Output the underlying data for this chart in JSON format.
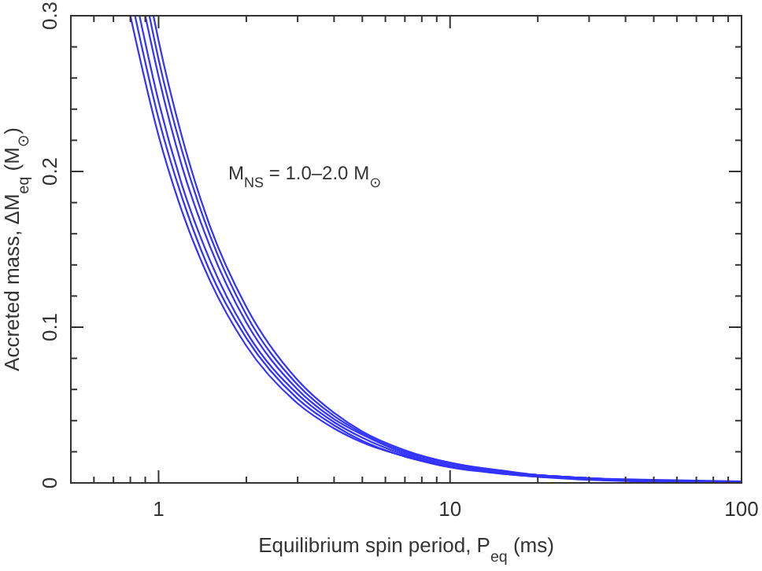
{
  "chart_data": {
    "type": "line",
    "xlabel": "Equilibrium spin period, P$_{eq}$ (ms)",
    "ylabel": "Accreted mass, ΔM$_{eq}$ (M$_{⊙}$)",
    "annotations": [
      "M$_{NS}$ = 1.0–2.0 M$_{⊙}$"
    ],
    "log": "x",
    "xlim": [
      0.5,
      100
    ],
    "ylim": [
      0,
      0.3
    ],
    "xticks": [
      {
        "value": 0.6,
        "label": null
      },
      {
        "value": 0.7,
        "label": null
      },
      {
        "value": 0.8,
        "label": null
      },
      {
        "value": 0.9,
        "label": null
      },
      1,
      {
        "value": 2,
        "label": null
      },
      {
        "value": 3,
        "label": null
      },
      {
        "value": 4,
        "label": null
      },
      {
        "value": 5,
        "label": null
      },
      {
        "value": 6,
        "label": null
      },
      {
        "value": 7,
        "label": null
      },
      {
        "value": 8,
        "label": null
      },
      {
        "value": 9,
        "label": null
      },
      10,
      {
        "value": 20,
        "label": null
      },
      {
        "value": 30,
        "label": null
      },
      {
        "value": 40,
        "label": null
      },
      {
        "value": 50,
        "label": null
      },
      {
        "value": 60,
        "label": null
      },
      {
        "value": 70,
        "label": null
      },
      {
        "value": 80,
        "label": null
      },
      {
        "value": 90,
        "label": null
      },
      100
    ],
    "yticks": [
      0,
      {
        "value": 0.02,
        "label": null
      },
      {
        "value": 0.04,
        "label": null
      },
      {
        "value": 0.06,
        "label": null
      },
      {
        "value": 0.08,
        "label": null
      },
      0.1,
      {
        "value": 0.12,
        "label": null
      },
      {
        "value": 0.14,
        "label": null
      },
      {
        "value": 0.16,
        "label": null
      },
      {
        "value": 0.18,
        "label": null
      },
      0.2,
      {
        "value": 0.22,
        "label": null
      },
      {
        "value": 0.24,
        "label": null
      },
      {
        "value": 0.26,
        "label": null
      },
      {
        "value": 0.28,
        "label": null
      },
      0.3
    ],
    "grid": false,
    "marker": "none",
    "line_style": "solid",
    "series": [
      {
        "color": "#3333ff",
        "x": [
          0.8,
          1,
          1.2,
          1.5,
          2,
          3,
          4,
          5,
          7,
          10,
          15,
          20,
          30,
          50,
          100
        ],
        "values": [
          0.3,
          0.223,
          0.175,
          0.13,
          0.088,
          0.051,
          0.035,
          0.026,
          0.017,
          0.01,
          0.006,
          0.004,
          0.002,
          0.001,
          0.001
        ]
      },
      {
        "color": "#3333ff",
        "x": [
          0.83,
          1,
          1.2,
          1.5,
          2,
          3,
          4,
          5,
          7,
          10,
          15,
          20,
          30,
          50,
          100
        ],
        "values": [
          0.3,
          0.234,
          0.184,
          0.136,
          0.093,
          0.054,
          0.037,
          0.027,
          0.017,
          0.011,
          0.006,
          0.004,
          0.003,
          0.001,
          0.001
        ]
      },
      {
        "color": "#3333ff",
        "x": [
          0.86,
          1,
          1.2,
          1.5,
          2,
          3,
          4,
          5,
          7,
          10,
          15,
          20,
          30,
          50,
          100
        ],
        "values": [
          0.3,
          0.245,
          0.192,
          0.143,
          0.097,
          0.057,
          0.039,
          0.029,
          0.018,
          0.011,
          0.007,
          0.005,
          0.003,
          0.001,
          0.001
        ]
      },
      {
        "color": "#3333ff",
        "x": [
          0.9,
          1,
          1.2,
          1.5,
          2,
          3,
          4,
          5,
          7,
          10,
          15,
          20,
          30,
          50,
          100
        ],
        "values": [
          0.3,
          0.261,
          0.204,
          0.152,
          0.103,
          0.06,
          0.041,
          0.031,
          0.019,
          0.012,
          0.007,
          0.005,
          0.003,
          0.001,
          0.001
        ]
      },
      {
        "color": "#3333ff",
        "x": [
          0.93,
          1,
          1.2,
          1.5,
          2,
          3,
          4,
          5,
          7,
          10,
          15,
          20,
          30,
          50,
          100
        ],
        "values": [
          0.3,
          0.272,
          0.214,
          0.159,
          0.108,
          0.063,
          0.043,
          0.032,
          0.02,
          0.013,
          0.007,
          0.005,
          0.003,
          0.001,
          0.001
        ]
      },
      {
        "color": "#3333ff",
        "x": [
          0.96,
          1,
          1.2,
          1.5,
          2,
          3,
          4,
          5,
          7,
          10,
          15,
          20,
          30,
          50,
          100
        ],
        "values": [
          0.3,
          0.284,
          0.223,
          0.165,
          0.113,
          0.066,
          0.045,
          0.033,
          0.021,
          0.013,
          0.008,
          0.005,
          0.003,
          0.002,
          0.001
        ]
      }
    ]
  }
}
